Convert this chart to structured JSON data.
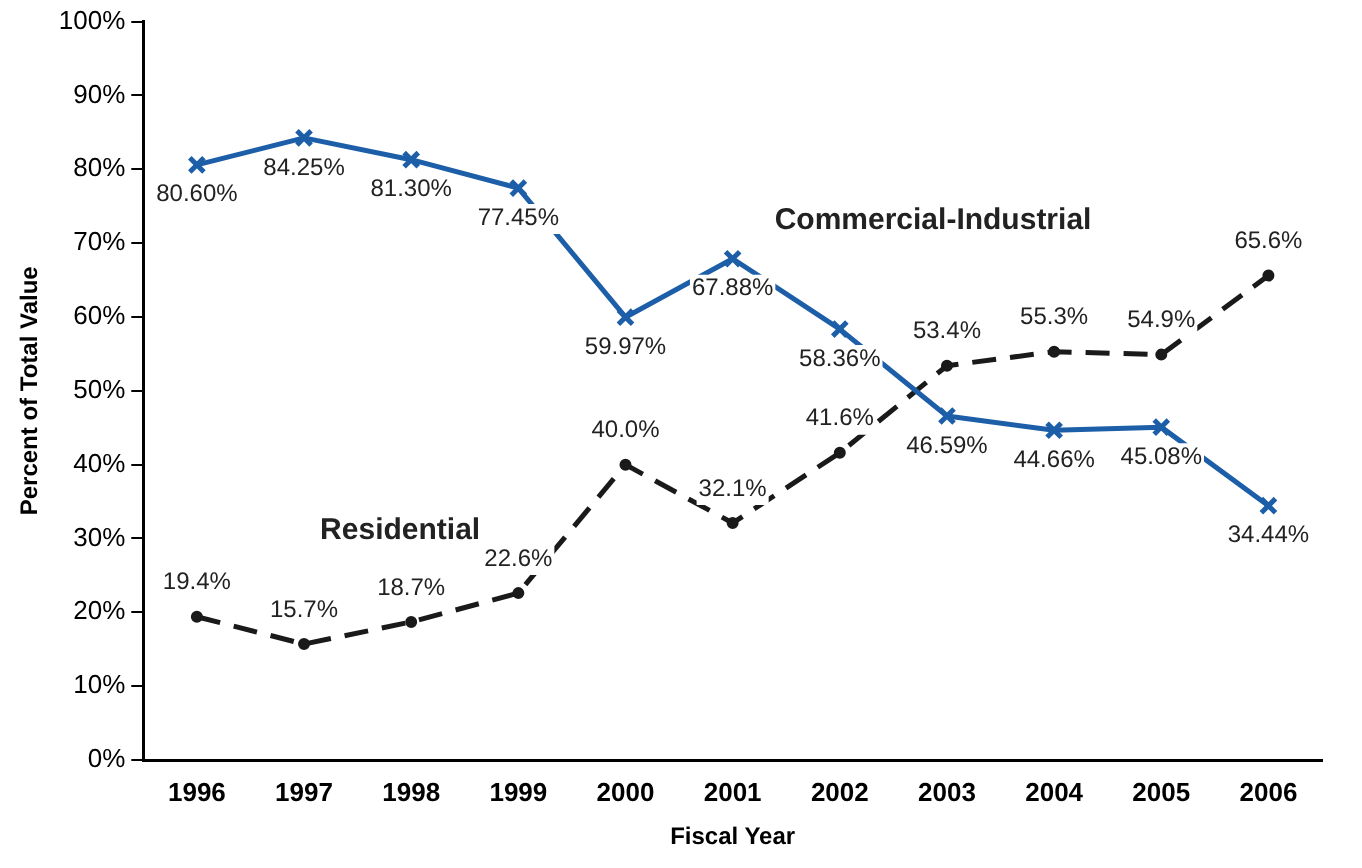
{
  "chart_data": {
    "type": "line",
    "xlabel": "Fiscal Year",
    "ylabel": "Percent of Total Value",
    "categories": [
      "1996",
      "1997",
      "1998",
      "1999",
      "2000",
      "2001",
      "2002",
      "2003",
      "2004",
      "2005",
      "2006"
    ],
    "series": [
      {
        "name": "Commercial-Industrial",
        "color": "#1c5ea8",
        "marker": "cross",
        "line_style": "solid",
        "values": [
          80.6,
          84.25,
          81.3,
          77.45,
          59.97,
          67.88,
          58.36,
          46.59,
          44.66,
          45.08,
          34.44
        ],
        "value_labels": [
          "80.60%",
          "84.25%",
          "81.30%",
          "77.45%",
          "59.97%",
          "67.88%",
          "58.36%",
          "46.59%",
          "44.66%",
          "45.08%",
          "34.44%"
        ]
      },
      {
        "name": "Residential",
        "color": "#1a1a1a",
        "marker": "circle",
        "line_style": "dashed",
        "values": [
          19.4,
          15.7,
          18.7,
          22.6,
          40.0,
          32.1,
          41.6,
          53.4,
          55.3,
          54.9,
          65.6
        ],
        "value_labels": [
          "19.4%",
          "15.7%",
          "18.7%",
          "22.6%",
          "40.0%",
          "32.1%",
          "41.6%",
          "53.4%",
          "55.3%",
          "54.9%",
          "65.6%"
        ]
      }
    ],
    "ylim": [
      0,
      100
    ],
    "yticks": [
      {
        "value": 0,
        "label": "0%"
      },
      {
        "value": 10,
        "label": "10%"
      },
      {
        "value": 20,
        "label": "20%"
      },
      {
        "value": 30,
        "label": "30%"
      },
      {
        "value": 40,
        "label": "40%"
      },
      {
        "value": 50,
        "label": "50%"
      },
      {
        "value": 60,
        "label": "60%"
      },
      {
        "value": 70,
        "label": "70%"
      },
      {
        "value": 80,
        "label": "80%"
      },
      {
        "value": 90,
        "label": "90%"
      },
      {
        "value": 100,
        "label": "100%"
      }
    ],
    "grid": false,
    "legend": false
  }
}
